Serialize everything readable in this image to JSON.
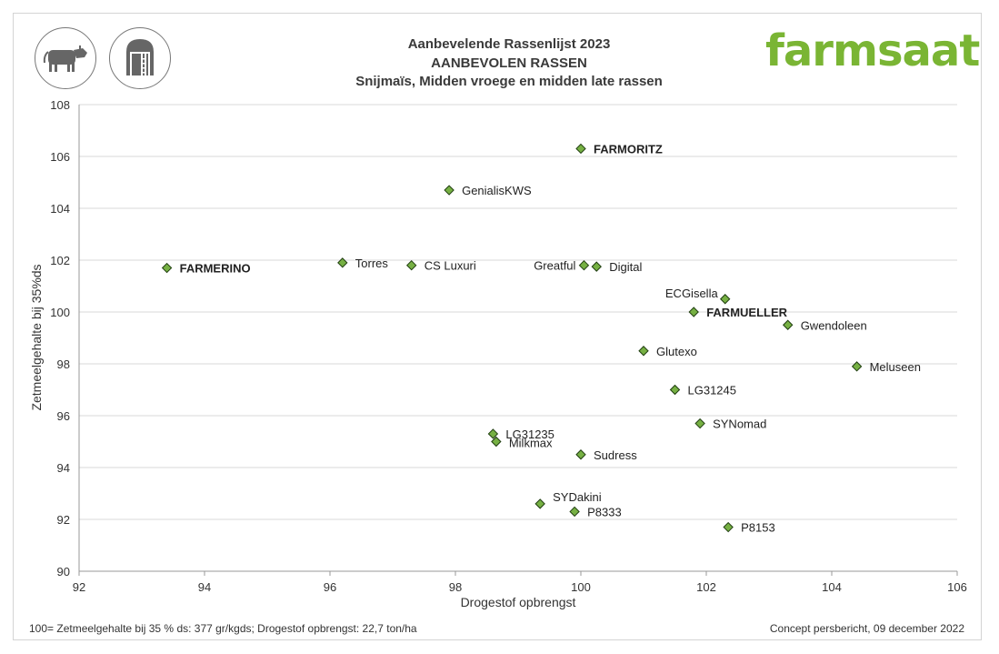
{
  "chart_data": {
    "type": "scatter",
    "title": "Aanbevelende Rassenlijst 2023",
    "subtitle": "AANBEVOLEN RASSEN",
    "subtitle2": "Snijmaïs, Midden vroege en midden late rassen",
    "xlabel": "Drogestof opbrengst",
    "ylabel": "Zetmeelgehalte bij 35%ds",
    "xlim": [
      92,
      106
    ],
    "ylim": [
      90,
      108
    ],
    "xticks": [
      92,
      94,
      96,
      98,
      100,
      102,
      104,
      106
    ],
    "yticks": [
      90,
      92,
      94,
      96,
      98,
      100,
      102,
      104,
      106,
      108
    ],
    "grid": "horizontal",
    "marker_color": "#76b043",
    "points": [
      {
        "label": "FARMORITZ",
        "x": 100.0,
        "y": 106.3,
        "bold": true,
        "pos": "right"
      },
      {
        "label": "GenialisKWS",
        "x": 97.9,
        "y": 104.7,
        "bold": false,
        "pos": "right"
      },
      {
        "label": "FARMERINO",
        "x": 93.4,
        "y": 101.7,
        "bold": true,
        "pos": "right"
      },
      {
        "label": "Torres",
        "x": 96.2,
        "y": 101.9,
        "bold": false,
        "pos": "right"
      },
      {
        "label": "CS Luxuri",
        "x": 97.3,
        "y": 101.8,
        "bold": false,
        "pos": "right"
      },
      {
        "label": "Greatful",
        "x": 100.05,
        "y": 101.8,
        "bold": false,
        "pos": "left"
      },
      {
        "label": "Digital",
        "x": 100.25,
        "y": 101.75,
        "bold": false,
        "pos": "right"
      },
      {
        "label": "ECGisella",
        "x": 102.3,
        "y": 100.5,
        "bold": false,
        "pos": "above-left"
      },
      {
        "label": "FARMUELLER",
        "x": 101.8,
        "y": 100.0,
        "bold": true,
        "pos": "right"
      },
      {
        "label": "Gwendoleen",
        "x": 103.3,
        "y": 99.5,
        "bold": false,
        "pos": "right"
      },
      {
        "label": "Glutexo",
        "x": 101.0,
        "y": 98.5,
        "bold": false,
        "pos": "right"
      },
      {
        "label": "Meluseen",
        "x": 104.4,
        "y": 97.9,
        "bold": false,
        "pos": "right"
      },
      {
        "label": "LG31245",
        "x": 101.5,
        "y": 97.0,
        "bold": false,
        "pos": "right"
      },
      {
        "label": "SYNomad",
        "x": 101.9,
        "y": 95.7,
        "bold": false,
        "pos": "right"
      },
      {
        "label": "LG31235",
        "x": 98.6,
        "y": 95.3,
        "bold": false,
        "pos": "right"
      },
      {
        "label": "Milkmax",
        "x": 98.65,
        "y": 95.0,
        "bold": false,
        "pos": "right-low"
      },
      {
        "label": "Sudress",
        "x": 100.0,
        "y": 94.5,
        "bold": false,
        "pos": "right"
      },
      {
        "label": "SYDakini",
        "x": 99.35,
        "y": 92.6,
        "bold": false,
        "pos": "above-right"
      },
      {
        "label": "P8333",
        "x": 99.9,
        "y": 92.3,
        "bold": false,
        "pos": "right"
      },
      {
        "label": "P8153",
        "x": 102.35,
        "y": 91.7,
        "bold": false,
        "pos": "right"
      }
    ]
  },
  "brand": {
    "name": "farmsaat",
    "color": "#7ab534"
  },
  "icons": [
    {
      "name": "cow-icon"
    },
    {
      "name": "silo-icon"
    }
  ],
  "footer": {
    "note": "100= Zetmeelgehalte bij 35 % ds: 377 gr/kgds; Drogestof opbrengst: 22,7 ton/ha",
    "press": "Concept persbericht, 09 december 2022"
  }
}
